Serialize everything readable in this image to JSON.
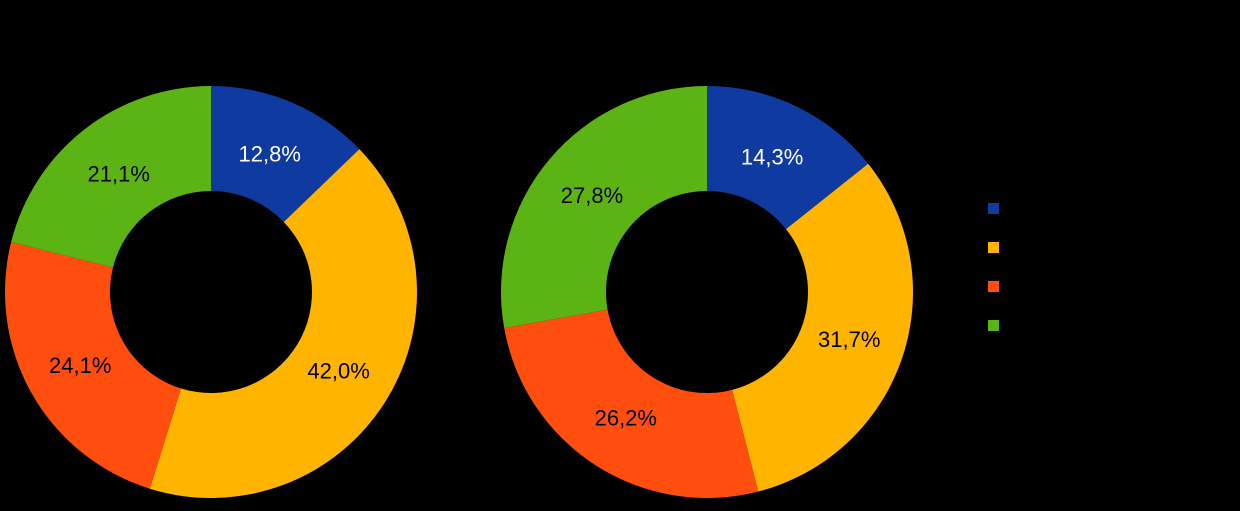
{
  "app": {
    "type": "static-chart-image",
    "background_color": "#000000"
  },
  "palette": {
    "blue": "#0F3AA0",
    "yellow": "#FFB400",
    "orange": "#FF4E0E",
    "green": "#5CB414"
  },
  "chart_data": [
    {
      "type": "pie",
      "subtype": "donut",
      "id": "donut-left",
      "unit": "%",
      "decimal_separator": ",",
      "values": [
        12.8,
        42.0,
        24.1,
        21.1
      ],
      "data_labels": [
        "12,8%",
        "42,0%",
        "24,1%",
        "21,1%"
      ],
      "slice_colors": [
        "#0F3AA0",
        "#FFB400",
        "#FF4E0E",
        "#5CB414"
      ],
      "data_label_colors": [
        "#FFFFFF",
        "#000000",
        "#000000",
        "#000000"
      ],
      "start_angle_deg": 0,
      "direction": "clockwise",
      "hole_ratio": 0.49
    },
    {
      "type": "pie",
      "subtype": "donut",
      "id": "donut-right",
      "unit": "%",
      "decimal_separator": ",",
      "values": [
        14.3,
        31.7,
        26.2,
        27.8
      ],
      "data_labels": [
        "14,3%",
        "31,7%",
        "26,2%",
        "27,8%"
      ],
      "slice_colors": [
        "#0F3AA0",
        "#FFB400",
        "#FF4E0E",
        "#5CB414"
      ],
      "data_label_colors": [
        "#FFFFFF",
        "#000000",
        "#000000",
        "#000000"
      ],
      "start_angle_deg": 0,
      "direction": "clockwise",
      "hole_ratio": 0.49
    }
  ],
  "legend": {
    "position": "right-middle",
    "orientation": "vertical",
    "labels_visible_in_pixels": false,
    "swatches": [
      {
        "name": "series-1-swatch",
        "color": "#0F3AA0"
      },
      {
        "name": "series-2-swatch",
        "color": "#FFB400"
      },
      {
        "name": "series-3-swatch",
        "color": "#FF4E0E"
      },
      {
        "name": "series-4-swatch",
        "color": "#5CB414"
      }
    ]
  }
}
